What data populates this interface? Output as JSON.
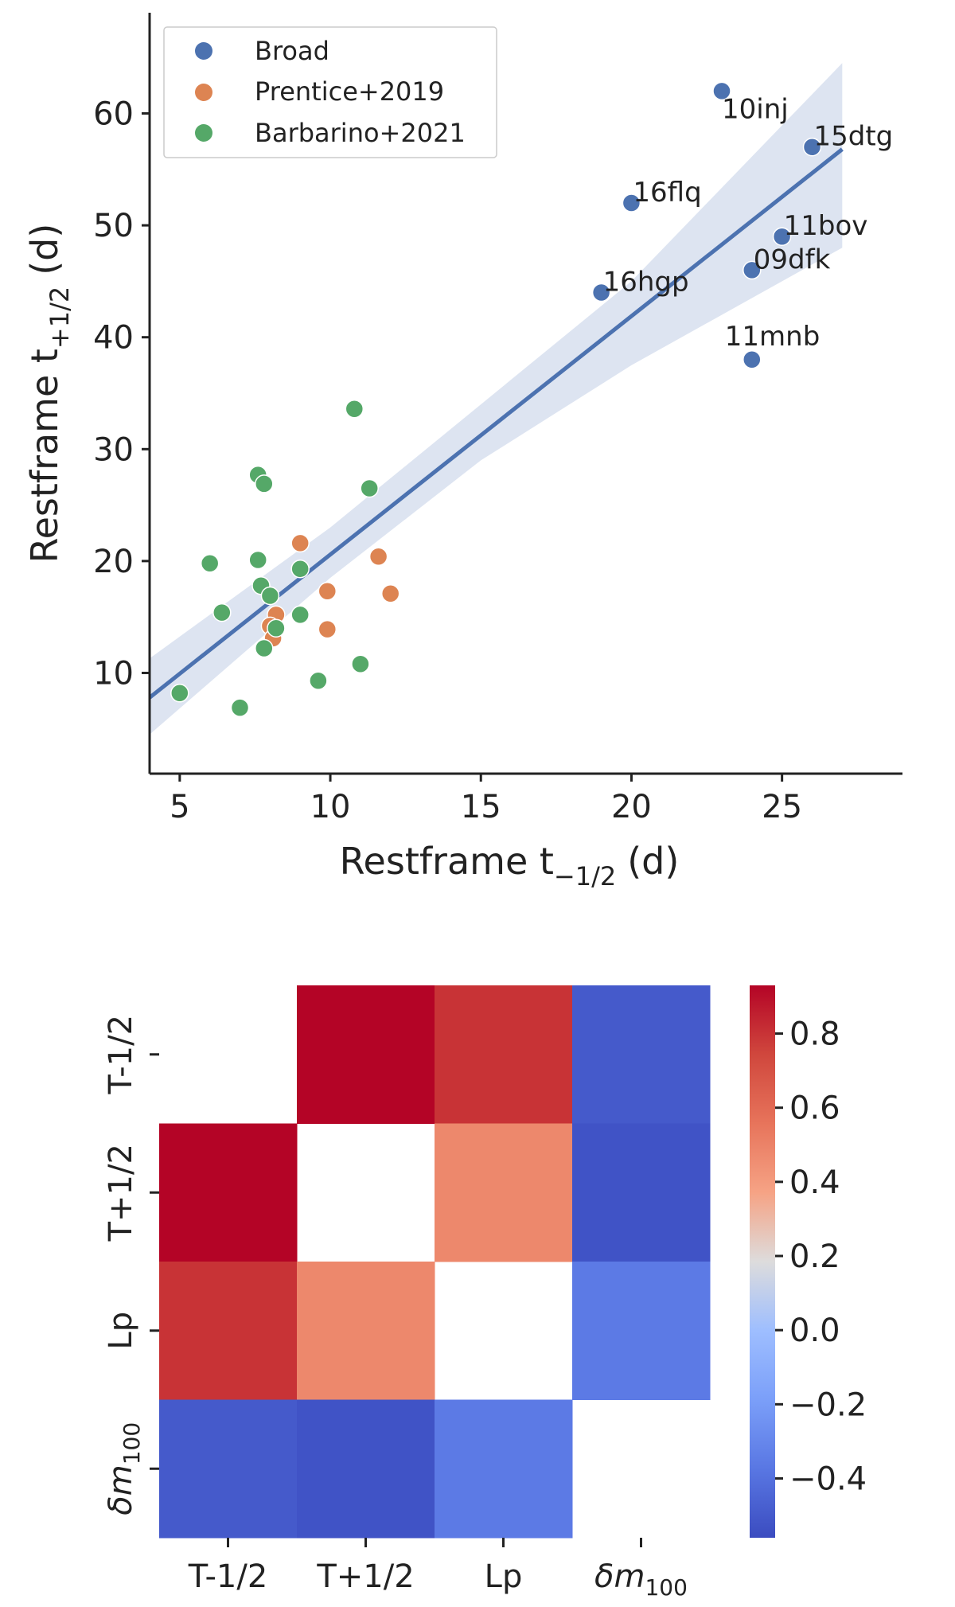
{
  "chart_data": [
    {
      "type": "scatter",
      "xlabel": "Restframe  t",
      "xlabel_sub": "−1/2",
      "xlabel_unit": "(d)",
      "ylabel": "Restframe  t",
      "ylabel_sub": "+1/2",
      "ylabel_unit": "(d)",
      "xlim": [
        4,
        29
      ],
      "ylim": [
        1,
        69
      ],
      "xticks": [
        "5",
        "10",
        "15",
        "20",
        "25"
      ],
      "xtick_values": [
        5,
        10,
        15,
        20,
        25
      ],
      "yticks": [
        "10",
        "20",
        "30",
        "40",
        "50",
        "60"
      ],
      "ytick_values": [
        10,
        20,
        30,
        40,
        50,
        60
      ],
      "legend_position": "upper-left",
      "series": [
        {
          "name": "Broad",
          "color": "#4c72b0",
          "points": [
            {
              "x": 23,
              "y": 62,
              "label": "10inj"
            },
            {
              "x": 26,
              "y": 57,
              "label": "15dtg"
            },
            {
              "x": 20,
              "y": 52,
              "label": "16flq"
            },
            {
              "x": 25,
              "y": 49,
              "label": "11bov"
            },
            {
              "x": 24,
              "y": 46,
              "label": "09dfk"
            },
            {
              "x": 19,
              "y": 44,
              "label": "16hgp"
            },
            {
              "x": 24,
              "y": 38,
              "label": "11mnb"
            }
          ]
        },
        {
          "name": "Prentice+2019",
          "color": "#dd8452",
          "points": [
            {
              "x": 9.0,
              "y": 21.6
            },
            {
              "x": 11.6,
              "y": 20.4
            },
            {
              "x": 9.9,
              "y": 17.3
            },
            {
              "x": 12.0,
              "y": 17.1
            },
            {
              "x": 8.2,
              "y": 15.2
            },
            {
              "x": 8.0,
              "y": 14.2
            },
            {
              "x": 9.9,
              "y": 13.9
            },
            {
              "x": 8.1,
              "y": 13.1
            }
          ]
        },
        {
          "name": "Barbarino+2021",
          "color": "#55a868",
          "points": [
            {
              "x": 10.8,
              "y": 33.6
            },
            {
              "x": 7.6,
              "y": 27.7
            },
            {
              "x": 7.8,
              "y": 26.9
            },
            {
              "x": 11.3,
              "y": 26.5
            },
            {
              "x": 6.0,
              "y": 19.8
            },
            {
              "x": 7.6,
              "y": 20.1
            },
            {
              "x": 9.0,
              "y": 19.3
            },
            {
              "x": 7.7,
              "y": 17.8
            },
            {
              "x": 8.0,
              "y": 16.9
            },
            {
              "x": 6.4,
              "y": 15.4
            },
            {
              "x": 9.0,
              "y": 15.2
            },
            {
              "x": 8.2,
              "y": 14.0
            },
            {
              "x": 7.8,
              "y": 12.2
            },
            {
              "x": 11.0,
              "y": 10.8
            },
            {
              "x": 9.6,
              "y": 9.3
            },
            {
              "x": 5.0,
              "y": 8.2
            },
            {
              "x": 7.0,
              "y": 6.9
            }
          ]
        }
      ],
      "regression": {
        "color": "#4c72b0",
        "band_color": "#dde4f1",
        "line": [
          [
            4,
            7.8
          ],
          [
            27,
            56.8
          ]
        ],
        "band_upper": [
          [
            4,
            11.3
          ],
          [
            10,
            23.0
          ],
          [
            15,
            34.0
          ],
          [
            20,
            45.0
          ],
          [
            27,
            64.5
          ]
        ],
        "band_lower": [
          [
            4,
            4.5
          ],
          [
            10,
            18.5
          ],
          [
            15,
            29.0
          ],
          [
            20,
            37.5
          ],
          [
            27,
            48.0
          ]
        ]
      }
    },
    {
      "type": "heatmap",
      "row_labels": [
        "T-1/2",
        "T+1/2",
        "Lp",
        "δm"
      ],
      "col_labels": [
        "T-1/2",
        "T+1/2",
        "Lp",
        "δm"
      ],
      "last_label_sub": "100",
      "values": [
        [
          null,
          0.93,
          0.8,
          -0.5
        ],
        [
          0.93,
          null,
          0.48,
          -0.53
        ],
        [
          0.8,
          0.48,
          null,
          -0.36
        ],
        [
          -0.5,
          -0.53,
          -0.36,
          null
        ]
      ],
      "vmin": -0.56,
      "vmax": 0.93,
      "colormap": "coolwarm",
      "colorbar_ticks": [
        "−0.4",
        "−0.2",
        "0.0",
        "0.2",
        "0.4",
        "0.6",
        "0.8"
      ],
      "colorbar_tick_values": [
        -0.4,
        -0.2,
        0.0,
        0.2,
        0.4,
        0.6,
        0.8
      ]
    }
  ]
}
